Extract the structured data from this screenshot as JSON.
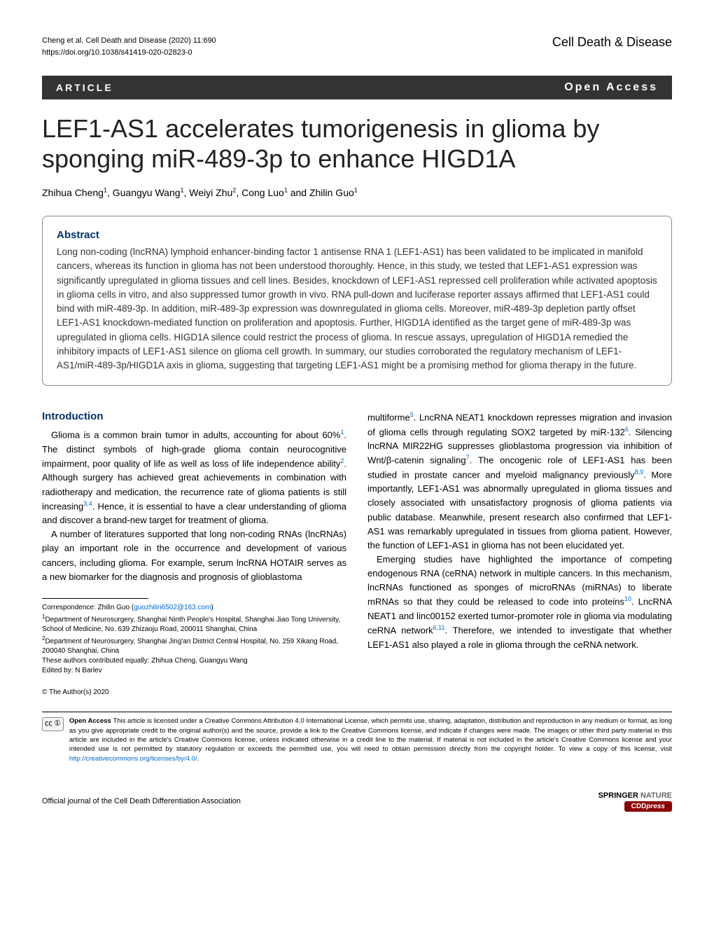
{
  "header": {
    "citation_line1": "Cheng et al. Cell Death and Disease          (2020) 11:690",
    "citation_line2": "https://doi.org/10.1038/s41419-020-02823-0",
    "journal": "Cell Death & Disease"
  },
  "article_bar": {
    "label": "ARTICLE",
    "open_access": "Open Access"
  },
  "title": "LEF1-AS1 accelerates tumorigenesis in glioma by sponging miR-489-3p to enhance HIGD1A",
  "authors_html": "Zhihua Cheng<sup>1</sup>, Guangyu Wang<sup>1</sup>, Weiyi Zhu<sup>2</sup>, Cong Luo<sup>1</sup> and Zhilin Guo<sup>1</sup>",
  "abstract": {
    "heading": "Abstract",
    "text": "Long non-coding (lncRNA) lymphoid enhancer-binding factor 1 antisense RNA 1 (LEF1-AS1) has been validated to be implicated in manifold cancers, whereas its function in glioma has not been understood thoroughly. Hence, in this study, we tested that LEF1-AS1 expression was significantly upregulated in glioma tissues and cell lines. Besides, knockdown of LEF1-AS1 repressed cell proliferation while activated apoptosis in glioma cells in vitro, and also suppressed tumor growth in vivo. RNA pull-down and luciferase reporter assays affirmed that LEF1-AS1 could bind with miR-489-3p. In addition, miR-489-3p expression was downregulated in glioma cells. Moreover, miR-489-3p depletion partly offset LEF1-AS1 knockdown-mediated function on proliferation and apoptosis. Further, HIGD1A identified as the target gene of miR-489-3p was upregulated in glioma cells. HIGD1A silence could restrict the process of glioma. In rescue assays, upregulation of HIGD1A remedied the inhibitory impacts of LEF1-AS1 silence on glioma cell growth. In summary, our studies corroborated the regulatory mechanism of LEF1-AS1/miR-489-3p/HIGD1A axis in glioma, suggesting that targeting LEF1-AS1 might be a promising method for glioma therapy in the future."
  },
  "intro": {
    "heading": "Introduction",
    "left_p1": "Glioma is a common brain tumor in adults, accounting for about 60%",
    "left_p1b": ". The distinct symbols of high-grade glioma contain neurocognitive impairment, poor quality of life as well as loss of life independence ability",
    "left_p1c": ". Although surgery has achieved great achievements in combination with radiotherapy and medication, the recurrence rate of glioma patients is still increasing",
    "left_p1d": ". Hence, it is essential to have a clear understanding of glioma and discover a brand-new target for treatment of glioma.",
    "left_p2": "A number of literatures supported that long non-coding RNAs (lncRNAs) play an important role in the occurrence and development of various cancers, including glioma. For example, serum lncRNA HOTAIR serves as a new biomarker for the diagnosis and prognosis of glioblastoma",
    "right_p1a": "multiforme",
    "right_p1b": ". LncRNA NEAT1 knockdown represses migration and invasion of glioma cells through regulating SOX2 targeted by miR-132",
    "right_p1c": ". Silencing lncRNA MIR22HG suppresses glioblastoma progression via inhibition of Wnt/β-catenin signaling",
    "right_p1d": ". The oncogenic role of LEF1-AS1 has been studied in prostate cancer and myeloid malignancy previously",
    "right_p1e": ". More importantly, LEF1-AS1 was abnormally upregulated in glioma tissues and closely associated with unsatisfactory prognosis of glioma patients via public database. Meanwhile, present research also confirmed that LEF1-AS1 was remarkably upregulated in tissues from glioma patient. However, the function of LEF1-AS1 in glioma has not been elucidated yet.",
    "right_p2a": "Emerging studies have highlighted the importance of competing endogenous RNA (ceRNA) network in multiple cancers. In this mechanism, lncRNAs functioned as sponges of microRNAs (miRNAs) to liberate mRNAs so that they could be released to code into proteins",
    "right_p2b": ". LncRNA NEAT1 and linc00152 exerted tumor-promoter role in glioma via modulating ceRNA network",
    "right_p2c": ". Therefore, we intended to investigate that whether LEF1-AS1 also played a role in glioma through the ceRNA network."
  },
  "refs": {
    "r1": "1",
    "r2": "2",
    "r34": "3,4",
    "r5": "5",
    "r6": "6",
    "r7": "7",
    "r89": "8,9",
    "r10": "10",
    "r611": "6,11"
  },
  "correspondence": {
    "line1a": "Correspondence: Zhilin Guo (",
    "email": "guozhilin6502@163.com",
    "line1b": ")",
    "aff1": "Department of Neurosurgery, Shanghai Ninth People's Hospital, Shanghai Jiao Tong University, School of Medicine, No. 639 Zhizaoju Road, 200011 Shanghai, China",
    "aff2": "Department of Neurosurgery, Shanghai Jing'an District Central Hospital, No. 259 Xikang Road, 200040 Shanghai, China",
    "contrib": "These authors contributed equally: Zhihua Cheng, Guangyu Wang",
    "edited": "Edited by: N Barlev"
  },
  "copyright": "© The Author(s) 2020",
  "license": {
    "bold": "Open Access",
    "text": " This article is licensed under a Creative Commons Attribution 4.0 International License, which permits use, sharing, adaptation, distribution and reproduction in any medium or format, as long as you give appropriate credit to the original author(s) and the source, provide a link to the Creative Commons license, and indicate if changes were made. The images or other third party material in this article are included in the article's Creative Commons license, unless indicated otherwise in a credit line to the material. If material is not included in the article's Creative Commons license and your intended use is not permitted by statutory regulation or exceeds the permitted use, you will need to obtain permission directly from the copyright holder. To view a copy of this license, visit ",
    "link": "http://creativecommons.org/licenses/by/4.0/",
    "period": "."
  },
  "footer": {
    "left": "Official journal of the Cell Death Differentiation Association",
    "springer1a": "SPRINGER",
    "springer1b": " NATURE",
    "cdd": "CDD",
    "press": "press"
  }
}
